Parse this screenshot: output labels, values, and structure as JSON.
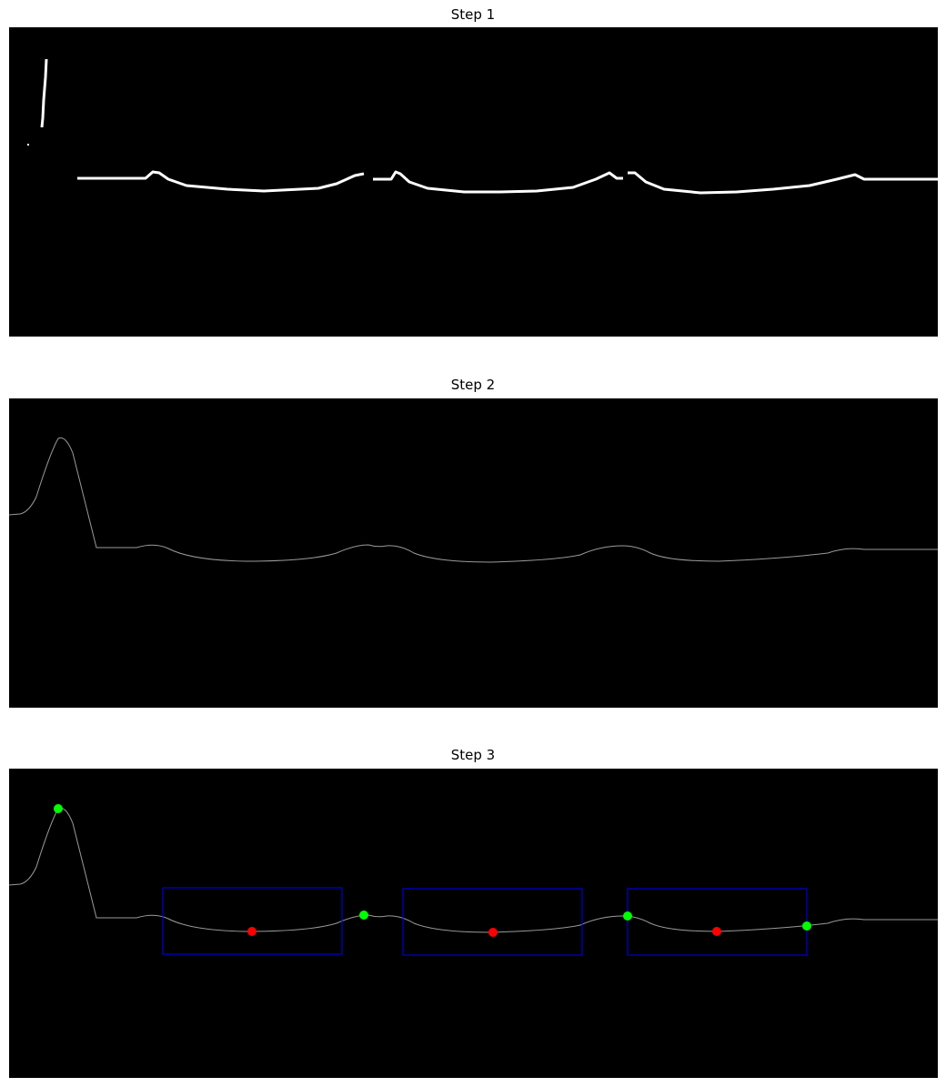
{
  "panels": [
    {
      "title": "Step 1",
      "kind": "binary-mask"
    },
    {
      "title": "Step 2",
      "kind": "smoothed-profile"
    },
    {
      "title": "Step 3",
      "kind": "annotated-profile",
      "marker_colors": {
        "peak": "#00ff00",
        "valley": "#ff0000",
        "box": "#0000ff"
      }
    }
  ],
  "colors": {
    "background": "#000000",
    "mask": "#ffffff",
    "profile": "#9a9a9a"
  }
}
